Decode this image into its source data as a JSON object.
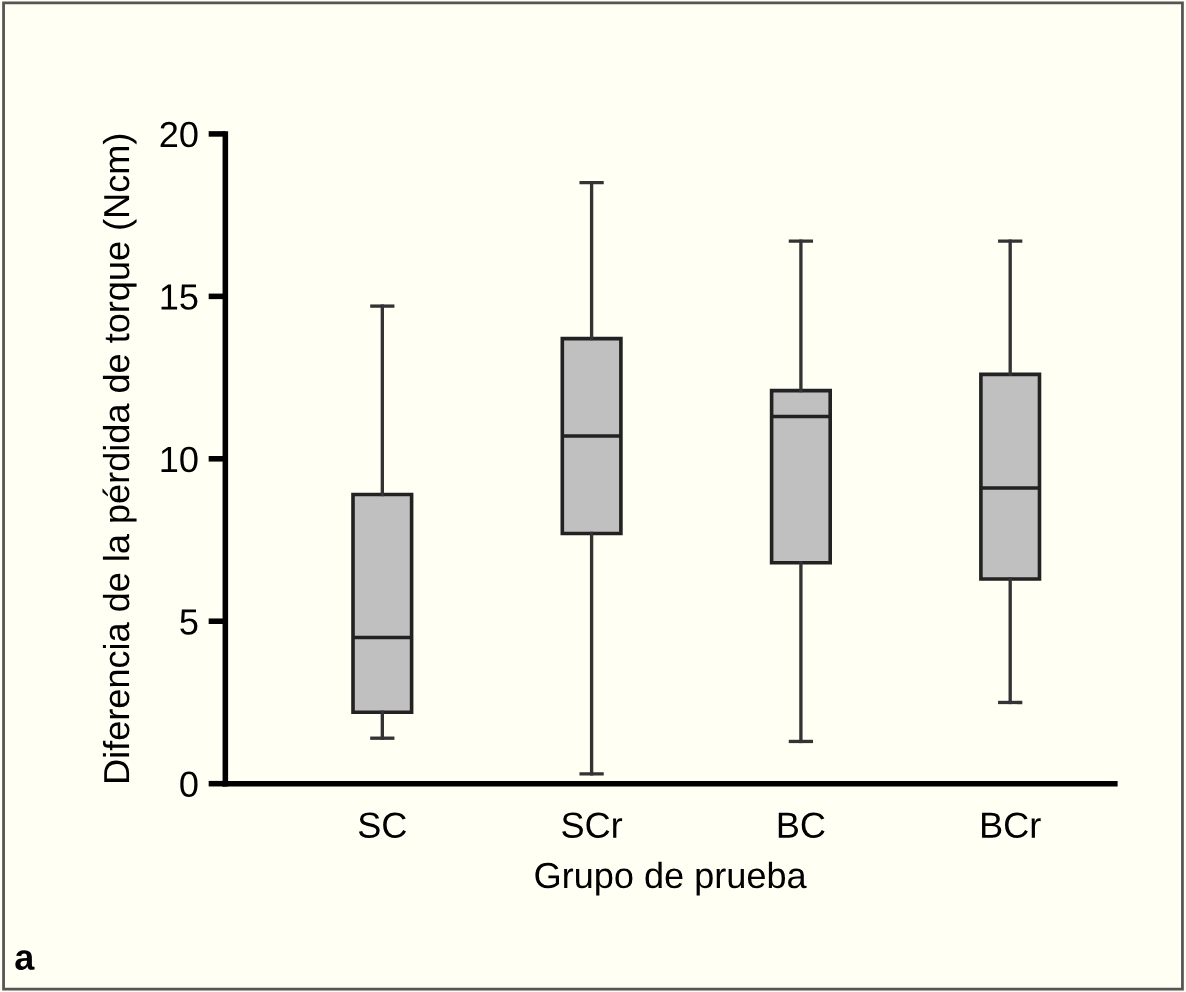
{
  "chart_data": {
    "type": "box",
    "xlabel": "Grupo de prueba",
    "ylabel": "Diferencia de la pérdida de torque (Ncm)",
    "categories": [
      "SC",
      "SCr",
      "BC",
      "BCr"
    ],
    "boxes": [
      {
        "low": 1.4,
        "q1": 2.2,
        "median": 4.5,
        "q3": 8.9,
        "high": 14.7
      },
      {
        "low": 0.3,
        "q1": 7.7,
        "median": 10.7,
        "q3": 13.7,
        "high": 18.5
      },
      {
        "low": 1.3,
        "q1": 6.8,
        "median": 11.3,
        "q3": 12.1,
        "high": 16.7
      },
      {
        "low": 2.5,
        "q1": 6.3,
        "median": 9.1,
        "q3": 12.6,
        "high": 16.7
      }
    ],
    "color": "#c0c0c0",
    "ylim": [
      0,
      20
    ],
    "yticks": [
      0,
      5,
      10,
      15,
      20
    ],
    "grid": false,
    "annotations": [
      "a"
    ]
  }
}
